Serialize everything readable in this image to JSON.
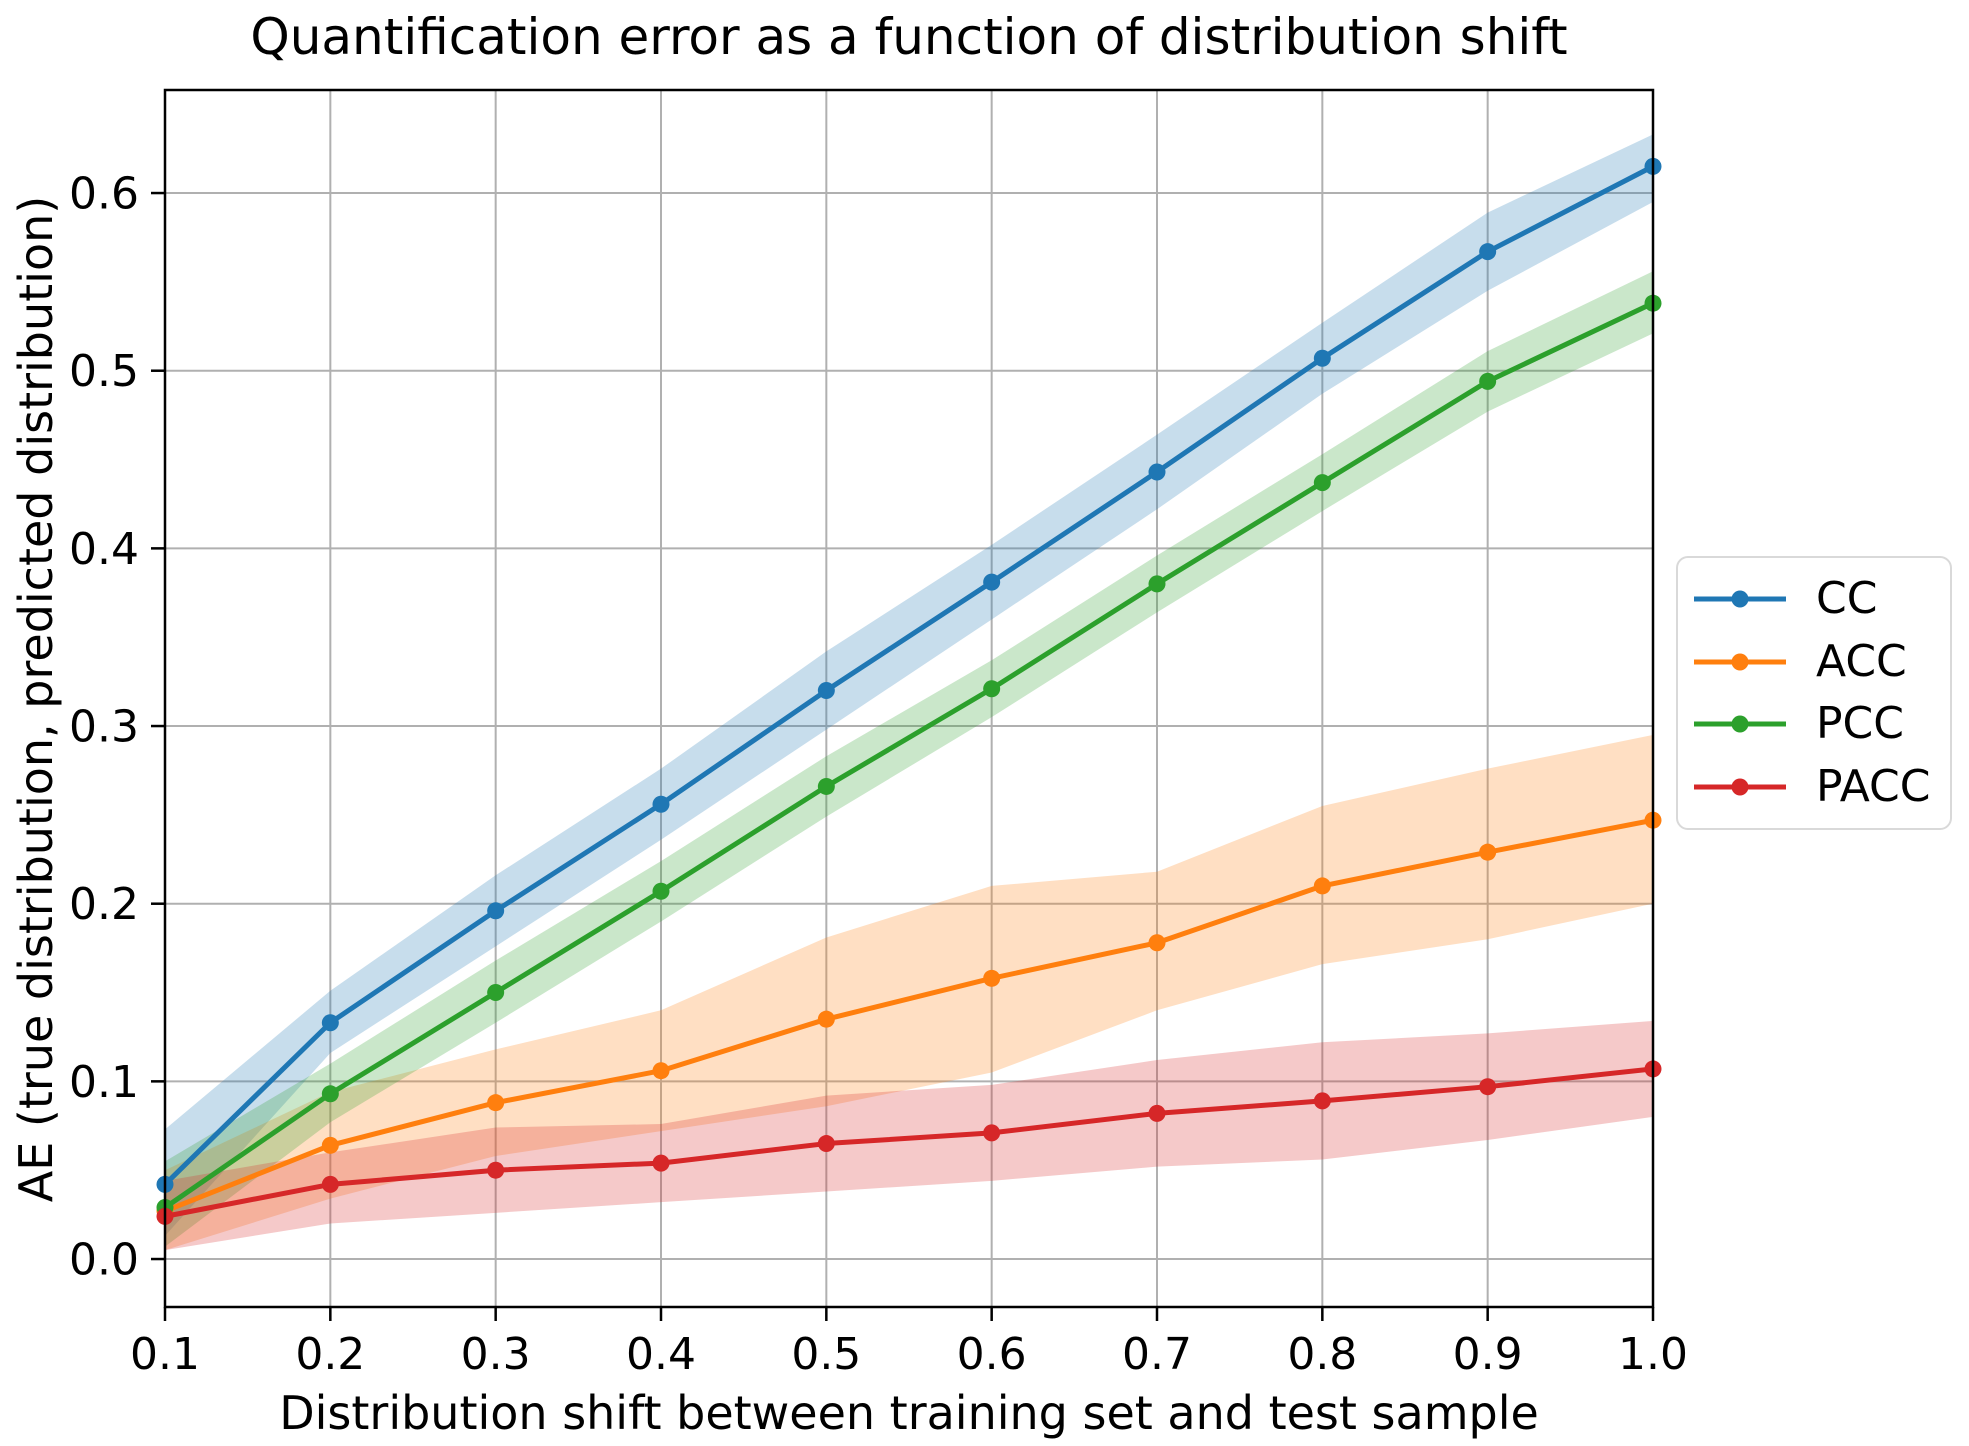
{
  "chart_data": {
    "type": "line",
    "title": "Quantification error as a function of distribution shift",
    "xlabel": "Distribution shift between training set and test sample",
    "ylabel": "AE (true distribution, predicted distribution)",
    "x": [
      0.1,
      0.2,
      0.3,
      0.4,
      0.5,
      0.6,
      0.7,
      0.8,
      0.9,
      1.0
    ],
    "xlim": [
      0.1,
      1.0
    ],
    "ylim": [
      -0.027,
      0.658
    ],
    "x_tick_labels": [
      "0.1",
      "0.2",
      "0.3",
      "0.4",
      "0.5",
      "0.6",
      "0.7",
      "0.8",
      "0.9",
      "1.0"
    ],
    "y_tick_labels": [
      "0.0",
      "0.1",
      "0.2",
      "0.3",
      "0.4",
      "0.5",
      "0.6"
    ],
    "grid": true,
    "grid_color": "#b0b0b0",
    "axis_color": "#000000",
    "band_opacity": 0.25,
    "legend_position": "right-outside",
    "series": [
      {
        "name": "CC",
        "color": "#1f77b4",
        "values": [
          0.042,
          0.133,
          0.196,
          0.256,
          0.32,
          0.381,
          0.443,
          0.507,
          0.567,
          0.615
        ],
        "lower": [
          0.013,
          0.116,
          0.176,
          0.236,
          0.298,
          0.36,
          0.422,
          0.487,
          0.545,
          0.595
        ],
        "upper": [
          0.073,
          0.151,
          0.216,
          0.276,
          0.342,
          0.402,
          0.464,
          0.527,
          0.589,
          0.633
        ]
      },
      {
        "name": "ACC",
        "color": "#ff7f0e",
        "values": [
          0.027,
          0.064,
          0.088,
          0.106,
          0.135,
          0.158,
          0.178,
          0.21,
          0.229,
          0.247
        ],
        "lower": [
          0.005,
          0.034,
          0.058,
          0.072,
          0.086,
          0.105,
          0.14,
          0.166,
          0.18,
          0.2
        ],
        "upper": [
          0.05,
          0.094,
          0.118,
          0.14,
          0.181,
          0.21,
          0.218,
          0.255,
          0.276,
          0.295
        ]
      },
      {
        "name": "PCC",
        "color": "#2ca02c",
        "values": [
          0.029,
          0.093,
          0.15,
          0.207,
          0.266,
          0.321,
          0.38,
          0.437,
          0.494,
          0.538
        ],
        "lower": [
          0.007,
          0.077,
          0.133,
          0.19,
          0.249,
          0.305,
          0.364,
          0.421,
          0.477,
          0.521
        ],
        "upper": [
          0.055,
          0.11,
          0.168,
          0.224,
          0.283,
          0.337,
          0.396,
          0.453,
          0.511,
          0.556
        ]
      },
      {
        "name": "PACC",
        "color": "#d62728",
        "values": [
          0.024,
          0.042,
          0.05,
          0.054,
          0.065,
          0.071,
          0.082,
          0.089,
          0.097,
          0.107
        ],
        "lower": [
          0.005,
          0.02,
          0.026,
          0.032,
          0.038,
          0.044,
          0.052,
          0.056,
          0.067,
          0.08
        ],
        "upper": [
          0.044,
          0.06,
          0.074,
          0.076,
          0.092,
          0.098,
          0.112,
          0.122,
          0.127,
          0.134
        ]
      }
    ]
  }
}
